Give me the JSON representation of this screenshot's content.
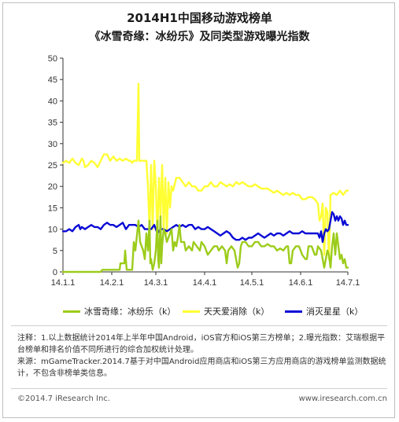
{
  "title": "2014H1中国移动游戏榜单",
  "subtitle": "《冰雪奇缘：冰纷乐》及同类型游戏曝光指数",
  "notes": [
    "注释：1.以上数据统计2014年上半年中国Android，iOS官方和iOS第三方榜单；2.曝光指数：艾瑞根据平台榜单和排名价值不同所进行的综合加权统计处理。",
    "来源：mGameTracker.2014.7基于对中国Android应用商店和iOS第三方应用商店的游戏榜单监测数据统计，不包含非榜单类信息。"
  ],
  "footer": {
    "left": "©2014.7 iResearch Inc.",
    "right": "www.iresearch.com.cn"
  },
  "chart_data": {
    "type": "line",
    "ylim": [
      0,
      50
    ],
    "yticks": [
      0,
      5,
      10,
      15,
      20,
      25,
      30,
      35,
      40,
      45,
      50
    ],
    "xlim": [
      0,
      181
    ],
    "xticks": [
      {
        "label": "14.1.1",
        "day": 0
      },
      {
        "label": "14.2.1",
        "day": 31
      },
      {
        "label": "14.3.1",
        "day": 59
      },
      {
        "label": "14.4.1",
        "day": 90
      },
      {
        "label": "14.5.1",
        "day": 120
      },
      {
        "label": "14.6.1",
        "day": 151
      },
      {
        "label": "14.7.1",
        "day": 181
      }
    ],
    "legend_position": "bottom",
    "grid": false,
    "series": [
      {
        "name": "冰雪奇缘：冰纷乐（k）",
        "color": "#9ccc1a",
        "points": [
          [
            0,
            0
          ],
          [
            24,
            0
          ],
          [
            25,
            0.5
          ],
          [
            36,
            0.5
          ],
          [
            36.5,
            2
          ],
          [
            39,
            2
          ],
          [
            39.5,
            5
          ],
          [
            40.5,
            0.5
          ],
          [
            44,
            0.5
          ],
          [
            45,
            7
          ],
          [
            46,
            5
          ],
          [
            48,
            12
          ],
          [
            49,
            7
          ],
          [
            51,
            5
          ],
          [
            52,
            3
          ],
          [
            53,
            9
          ],
          [
            54,
            5
          ],
          [
            55,
            12
          ],
          [
            55.5,
            2
          ],
          [
            56,
            3
          ],
          [
            57,
            0.5
          ],
          [
            58,
            2
          ],
          [
            59,
            5
          ],
          [
            60,
            12
          ],
          [
            60.5,
            3
          ],
          [
            61,
            1
          ],
          [
            62,
            13
          ],
          [
            62.5,
            2
          ],
          [
            63,
            6
          ],
          [
            64,
            10
          ],
          [
            65,
            9
          ],
          [
            66,
            7
          ],
          [
            67,
            8
          ],
          [
            69,
            10
          ],
          [
            70,
            5
          ],
          [
            71,
            7
          ],
          [
            72,
            6
          ],
          [
            73,
            8
          ],
          [
            74,
            11
          ],
          [
            75,
            7
          ],
          [
            77,
            7
          ],
          [
            78,
            5
          ],
          [
            80,
            6
          ],
          [
            82,
            5
          ],
          [
            83,
            7
          ],
          [
            85,
            6
          ],
          [
            87,
            5
          ],
          [
            88,
            7
          ],
          [
            90,
            6
          ],
          [
            92,
            4
          ],
          [
            94,
            5
          ],
          [
            96,
            6
          ],
          [
            98,
            6
          ],
          [
            99,
            5
          ],
          [
            101,
            6
          ],
          [
            103,
            5
          ],
          [
            104,
            2
          ],
          [
            105,
            5
          ],
          [
            107,
            6
          ],
          [
            109,
            5
          ],
          [
            110,
            3
          ],
          [
            111,
            1
          ],
          [
            112,
            2
          ],
          [
            113,
            6
          ],
          [
            114,
            7
          ],
          [
            116,
            7
          ],
          [
            118,
            6
          ],
          [
            120,
            6
          ],
          [
            122,
            7
          ],
          [
            124,
            7
          ],
          [
            126,
            6
          ],
          [
            128,
            6
          ],
          [
            130,
            6.5
          ],
          [
            132,
            6
          ],
          [
            134,
            6
          ],
          [
            136,
            5
          ],
          [
            138,
            5.5
          ],
          [
            140,
            5
          ],
          [
            142,
            6
          ],
          [
            143,
            6
          ],
          [
            144,
            2
          ],
          [
            145,
            2
          ],
          [
            146,
            5
          ],
          [
            148,
            6
          ],
          [
            150,
            6
          ],
          [
            151,
            5
          ],
          [
            152,
            4
          ],
          [
            154,
            3
          ],
          [
            155,
            3
          ],
          [
            156,
            6
          ],
          [
            158,
            6
          ],
          [
            159,
            5
          ],
          [
            160,
            4
          ],
          [
            161,
            4
          ],
          [
            162,
            6
          ],
          [
            164,
            5
          ],
          [
            165,
            3
          ],
          [
            166,
            1
          ],
          [
            167,
            3
          ],
          [
            168,
            5
          ],
          [
            169,
            4
          ],
          [
            170,
            1
          ],
          [
            171,
            6
          ],
          [
            172,
            9
          ],
          [
            173,
            4
          ],
          [
            174,
            9
          ],
          [
            175,
            6
          ],
          [
            176,
            3
          ],
          [
            177,
            4
          ],
          [
            178,
            2
          ],
          [
            179,
            3
          ],
          [
            180,
            1
          ],
          [
            181,
            1
          ]
        ]
      },
      {
        "name": "天天爱消除（k）",
        "color": "#ffff33",
        "points": [
          [
            0,
            25.5
          ],
          [
            2,
            26
          ],
          [
            4,
            25.5
          ],
          [
            6,
            26.5
          ],
          [
            8,
            25.5
          ],
          [
            10,
            25
          ],
          [
            12,
            26.5
          ],
          [
            13,
            26
          ],
          [
            14,
            24.5
          ],
          [
            16,
            25
          ],
          [
            18,
            26
          ],
          [
            20,
            25.5
          ],
          [
            22,
            24.5
          ],
          [
            24,
            26
          ],
          [
            26,
            27.5
          ],
          [
            28,
            27.5
          ],
          [
            30,
            26
          ],
          [
            32,
            27
          ],
          [
            34,
            26
          ],
          [
            36,
            26.5
          ],
          [
            38,
            26
          ],
          [
            40,
            26.5
          ],
          [
            42,
            26
          ],
          [
            43,
            26
          ],
          [
            44,
            25.5
          ],
          [
            45,
            26
          ],
          [
            46,
            26
          ],
          [
            47,
            26
          ],
          [
            48,
            44
          ],
          [
            48.5,
            26
          ],
          [
            50,
            26
          ],
          [
            52,
            26
          ],
          [
            53,
            26
          ],
          [
            54,
            20
          ],
          [
            55,
            10
          ],
          [
            56,
            25
          ],
          [
            57,
            10
          ],
          [
            58,
            26
          ],
          [
            59,
            20
          ],
          [
            60,
            8
          ],
          [
            61,
            22
          ],
          [
            62,
            13
          ],
          [
            63,
            25
          ],
          [
            64,
            10
          ],
          [
            65,
            22
          ],
          [
            66,
            9
          ],
          [
            67,
            21
          ],
          [
            68,
            15
          ],
          [
            69,
            20
          ],
          [
            70,
            19
          ],
          [
            72,
            22
          ],
          [
            74,
            22
          ],
          [
            76,
            21
          ],
          [
            78,
            20
          ],
          [
            80,
            21
          ],
          [
            82,
            20
          ],
          [
            84,
            20
          ],
          [
            86,
            19
          ],
          [
            88,
            19
          ],
          [
            90,
            20
          ],
          [
            92,
            20
          ],
          [
            94,
            21
          ],
          [
            96,
            20
          ],
          [
            98,
            20
          ],
          [
            100,
            21
          ],
          [
            102,
            20.5
          ],
          [
            104,
            20
          ],
          [
            106,
            20.5
          ],
          [
            108,
            20
          ],
          [
            110,
            21
          ],
          [
            112,
            20.5
          ],
          [
            114,
            21
          ],
          [
            116,
            20.5
          ],
          [
            118,
            20
          ],
          [
            120,
            20
          ],
          [
            122,
            20.5
          ],
          [
            124,
            20
          ],
          [
            126,
            19.5
          ],
          [
            128,
            19.5
          ],
          [
            130,
            19.5
          ],
          [
            132,
            19
          ],
          [
            134,
            18.5
          ],
          [
            136,
            19
          ],
          [
            138,
            18.5
          ],
          [
            140,
            18
          ],
          [
            142,
            18.5
          ],
          [
            144,
            18
          ],
          [
            146,
            18.5
          ],
          [
            148,
            18
          ],
          [
            150,
            18
          ],
          [
            152,
            17
          ],
          [
            154,
            17
          ],
          [
            156,
            17.5
          ],
          [
            158,
            17.5
          ],
          [
            160,
            17
          ],
          [
            162,
            16
          ],
          [
            163,
            12
          ],
          [
            164,
            13
          ],
          [
            165,
            16
          ],
          [
            166,
            4
          ],
          [
            167,
            15
          ],
          [
            168,
            14
          ],
          [
            169,
            3
          ],
          [
            170,
            18
          ],
          [
            172,
            18.5
          ],
          [
            174,
            18
          ],
          [
            176,
            19
          ],
          [
            178,
            18
          ],
          [
            180,
            19
          ],
          [
            181,
            19
          ]
        ]
      },
      {
        "name": "消灭星星（k）",
        "color": "#0a0ad6",
        "points": [
          [
            0,
            9.5
          ],
          [
            2,
            9.5
          ],
          [
            4,
            10
          ],
          [
            6,
            9.5
          ],
          [
            8,
            10.5
          ],
          [
            10,
            11
          ],
          [
            11,
            10
          ],
          [
            12,
            10.5
          ],
          [
            14,
            10
          ],
          [
            16,
            10.5
          ],
          [
            18,
            11
          ],
          [
            20,
            10.5
          ],
          [
            22,
            10.5
          ],
          [
            24,
            10
          ],
          [
            26,
            11
          ],
          [
            28,
            11.5
          ],
          [
            30,
            11
          ],
          [
            32,
            11
          ],
          [
            34,
            10.5
          ],
          [
            36,
            11
          ],
          [
            38,
            11.5
          ],
          [
            40,
            10
          ],
          [
            42,
            11
          ],
          [
            44,
            11
          ],
          [
            46,
            11
          ],
          [
            48,
            10.5
          ],
          [
            50,
            11
          ],
          [
            52,
            10
          ],
          [
            54,
            10
          ],
          [
            56,
            10
          ],
          [
            58,
            11
          ],
          [
            60,
            9
          ],
          [
            62,
            10
          ],
          [
            64,
            10
          ],
          [
            66,
            9.5
          ],
          [
            68,
            10
          ],
          [
            70,
            10.5
          ],
          [
            72,
            11
          ],
          [
            74,
            10.5
          ],
          [
            76,
            11
          ],
          [
            78,
            10.5
          ],
          [
            80,
            11
          ],
          [
            82,
            11
          ],
          [
            84,
            10
          ],
          [
            86,
            10.5
          ],
          [
            88,
            10
          ],
          [
            90,
            10
          ],
          [
            92,
            10.5
          ],
          [
            94,
            10
          ],
          [
            96,
            9.5
          ],
          [
            98,
            9
          ],
          [
            100,
            8.5
          ],
          [
            102,
            9
          ],
          [
            104,
            9.5
          ],
          [
            106,
            9
          ],
          [
            108,
            8
          ],
          [
            110,
            7.5
          ],
          [
            112,
            7.5
          ],
          [
            114,
            8
          ],
          [
            116,
            7.5
          ],
          [
            118,
            8
          ],
          [
            120,
            8
          ],
          [
            122,
            8.5
          ],
          [
            124,
            9
          ],
          [
            126,
            8.5
          ],
          [
            128,
            8
          ],
          [
            130,
            8.5
          ],
          [
            132,
            9
          ],
          [
            134,
            8.5
          ],
          [
            136,
            9
          ],
          [
            138,
            9
          ],
          [
            140,
            8.5
          ],
          [
            142,
            9
          ],
          [
            144,
            9.5
          ],
          [
            146,
            9
          ],
          [
            148,
            9
          ],
          [
            150,
            9
          ],
          [
            152,
            9.5
          ],
          [
            154,
            9
          ],
          [
            156,
            9
          ],
          [
            158,
            9
          ],
          [
            160,
            9
          ],
          [
            162,
            9
          ],
          [
            163,
            8
          ],
          [
            164,
            9.5
          ],
          [
            165,
            7
          ],
          [
            166,
            9
          ],
          [
            167,
            10
          ],
          [
            168,
            9.5
          ],
          [
            169,
            10
          ],
          [
            170,
            12
          ],
          [
            171,
            14
          ],
          [
            172,
            13.5
          ],
          [
            173,
            12
          ],
          [
            174,
            13
          ],
          [
            175,
            12
          ],
          [
            176,
            13
          ],
          [
            177,
            12.5
          ],
          [
            178,
            11
          ],
          [
            179,
            12
          ],
          [
            180,
            11
          ],
          [
            181,
            11
          ]
        ]
      }
    ]
  }
}
